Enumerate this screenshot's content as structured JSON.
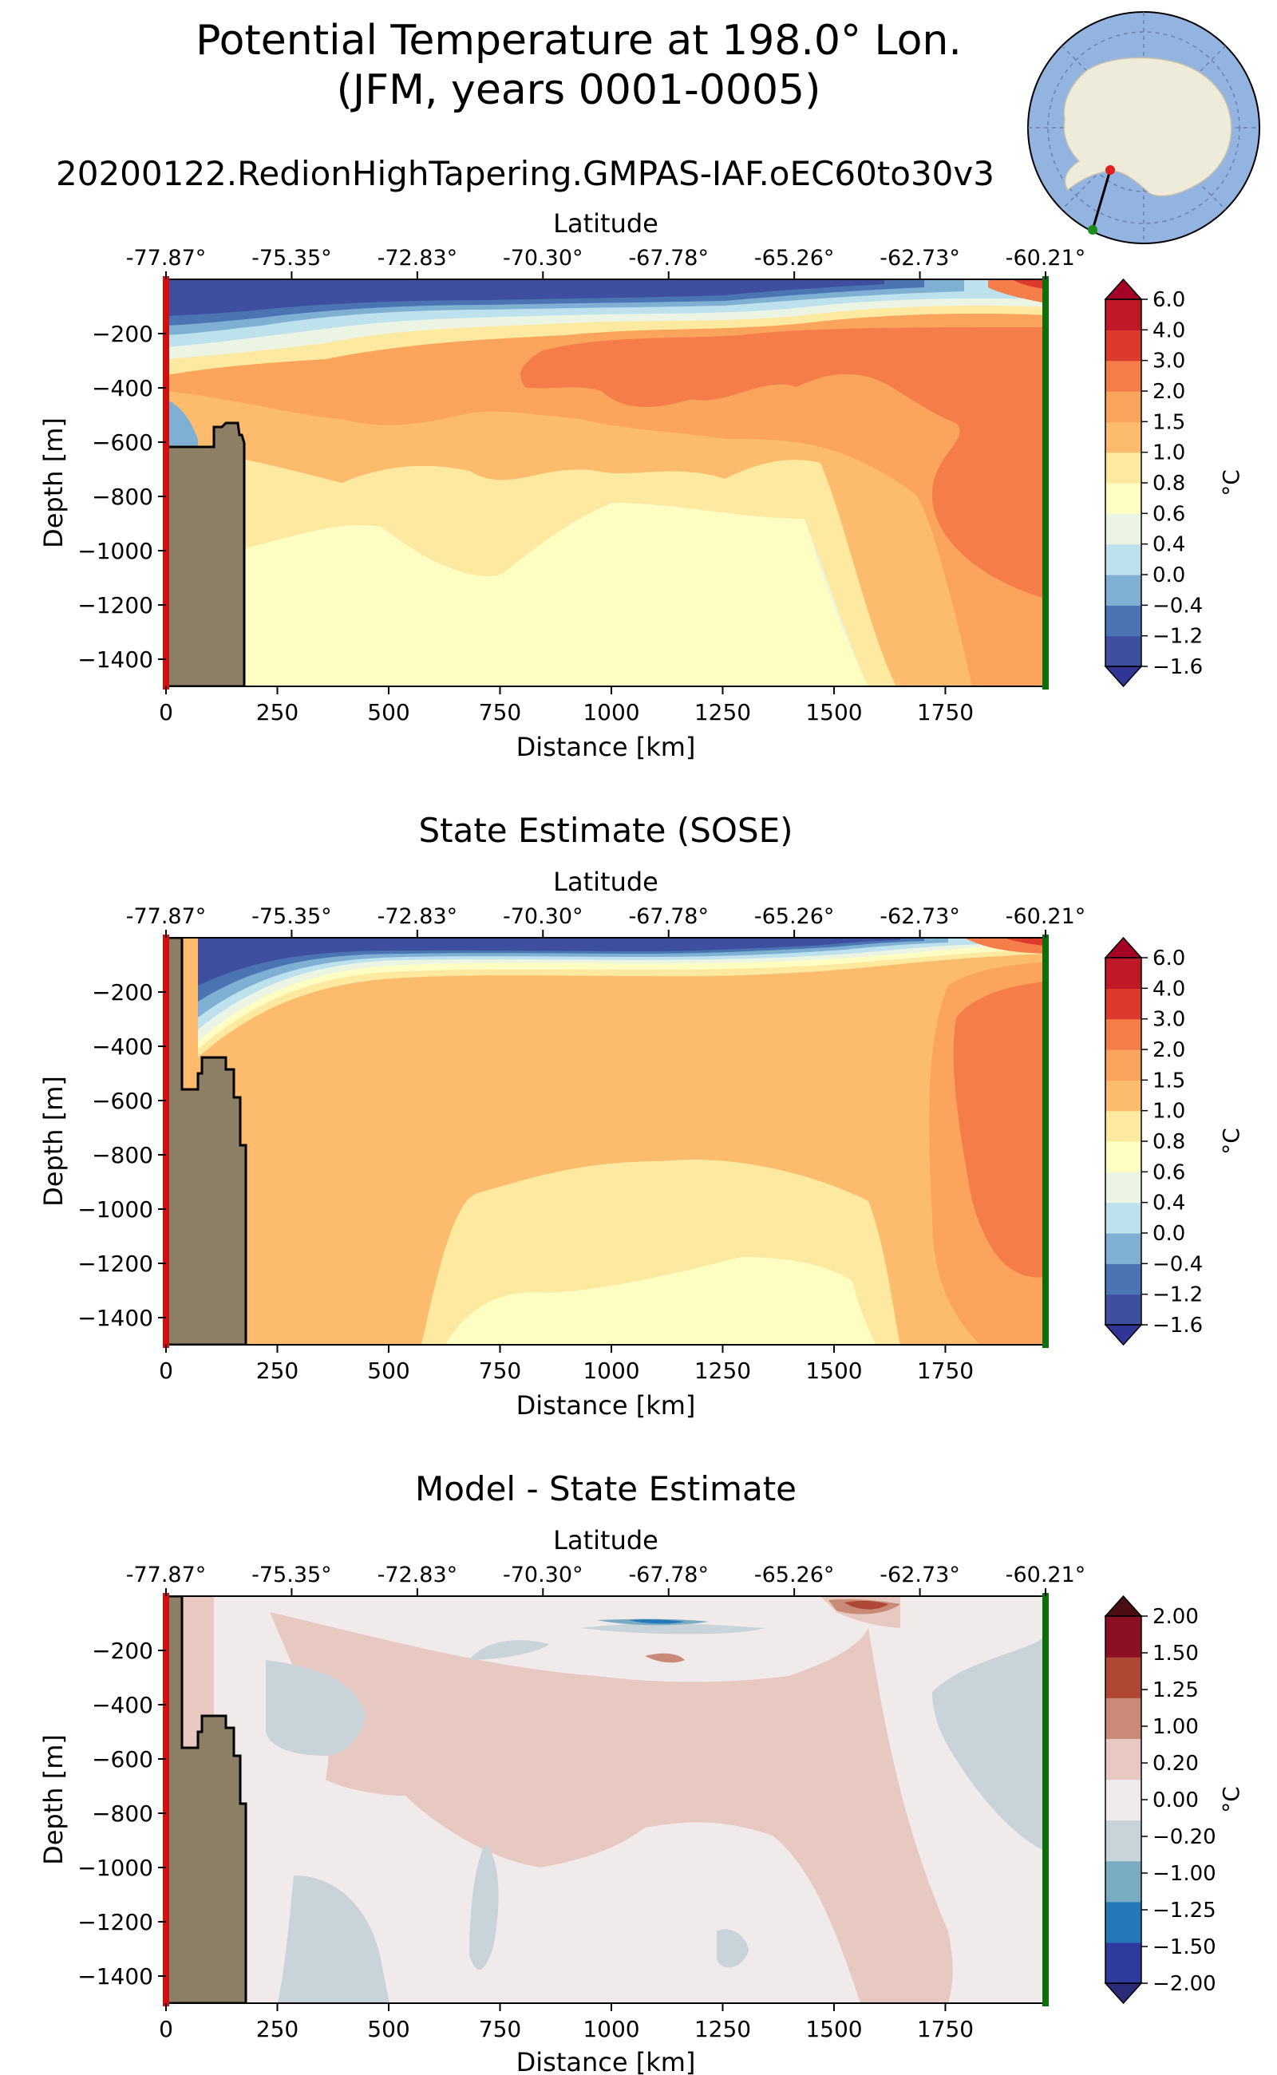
{
  "figure": {
    "title_line1": "Potential Temperature at 198.0° Lon.",
    "title_line2": "(JFM, years 0001-0005)",
    "run_name": "20200122.RedionHighTapering.GMPAS-IAF.oEC60to30v3"
  },
  "colors": {
    "land": "#8c7f65",
    "start_marker": "#cc1111",
    "end_marker": "#0b6e0b",
    "temp_levels": [
      "#313695",
      "#3e4fa0",
      "#4a74b4",
      "#7fb0d3",
      "#bde2ee",
      "#ecf5e3",
      "#fefec2",
      "#fdeaa0",
      "#fdbb6e",
      "#fba45d",
      "#f57d4a",
      "#dc3a2d",
      "#bf1827",
      "#a50026"
    ],
    "diff_levels": [
      "#2a2b7a",
      "#2f3b9c",
      "#2778b8",
      "#79abc3",
      "#c8d3da",
      "#f1eaea",
      "#e8c9c1",
      "#c98a78",
      "#b04634",
      "#8b1026",
      "#4a0d12"
    ]
  },
  "chart_data": [
    {
      "type": "contourf",
      "title": "",
      "top_xlabel": "Latitude",
      "top_ticks": [
        "-77.87°",
        "-75.35°",
        "-72.83°",
        "-70.30°",
        "-67.78°",
        "-65.26°",
        "-62.73°",
        "-60.21°"
      ],
      "xlabel": "Distance [km]",
      "ylabel": "Depth [m]",
      "xlim": [
        0,
        1975
      ],
      "ylim": [
        -1500,
        0
      ],
      "x_ticks": [
        0,
        250,
        500,
        750,
        1000,
        1250,
        1500,
        1750
      ],
      "y_ticks": [
        -200,
        -400,
        -600,
        -800,
        -1000,
        -1200,
        -1400
      ],
      "colorbar_label": "°C",
      "colorbar_ticks": [
        "6.0",
        "4.0",
        "3.0",
        "2.0",
        "1.5",
        "1.0",
        "0.8",
        "0.6",
        "0.4",
        "0.0",
        "−0.4",
        "−1.2",
        "−1.6"
      ]
    },
    {
      "type": "contourf",
      "title": "State Estimate (SOSE)",
      "top_xlabel": "Latitude",
      "top_ticks": [
        "-77.87°",
        "-75.35°",
        "-72.83°",
        "-70.30°",
        "-67.78°",
        "-65.26°",
        "-62.73°",
        "-60.21°"
      ],
      "xlabel": "Distance [km]",
      "ylabel": "Depth [m]",
      "xlim": [
        0,
        1975
      ],
      "ylim": [
        -1500,
        0
      ],
      "x_ticks": [
        0,
        250,
        500,
        750,
        1000,
        1250,
        1500,
        1750
      ],
      "y_ticks": [
        -200,
        -400,
        -600,
        -800,
        -1000,
        -1200,
        -1400
      ],
      "colorbar_label": "°C",
      "colorbar_ticks": [
        "6.0",
        "4.0",
        "3.0",
        "2.0",
        "1.5",
        "1.0",
        "0.8",
        "0.6",
        "0.4",
        "0.0",
        "−0.4",
        "−1.2",
        "−1.6"
      ]
    },
    {
      "type": "contourf",
      "title": "Model - State Estimate",
      "top_xlabel": "Latitude",
      "top_ticks": [
        "-77.87°",
        "-75.35°",
        "-72.83°",
        "-70.30°",
        "-67.78°",
        "-65.26°",
        "-62.73°",
        "-60.21°"
      ],
      "xlabel": "Distance [km]",
      "ylabel": "Depth [m]",
      "xlim": [
        0,
        1975
      ],
      "ylim": [
        -1500,
        0
      ],
      "x_ticks": [
        0,
        250,
        500,
        750,
        1000,
        1250,
        1500,
        1750
      ],
      "y_ticks": [
        -200,
        -400,
        -600,
        -800,
        -1000,
        -1200,
        -1400
      ],
      "colorbar_label": "°C",
      "colorbar_ticks": [
        "2.00",
        "1.50",
        "1.25",
        "1.00",
        "0.20",
        "0.00",
        "−0.20",
        "−1.00",
        "−1.25",
        "−1.50",
        "−2.00"
      ]
    }
  ]
}
